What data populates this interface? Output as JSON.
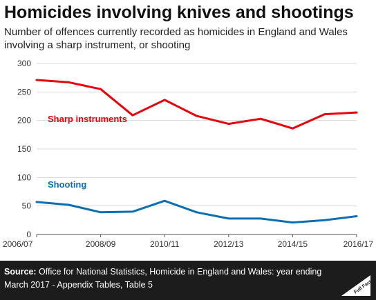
{
  "header": {
    "title": "Homicides involving knives and shootings",
    "subtitle": "Number of offences currently recorded as homicides in England and Wales involving a sharp instrument, or shooting"
  },
  "footer": {
    "source_label": "Source:",
    "source_text": "Office for National Statistics, Homicide in England and Wales: year ending March 2017 - Appendix Tables, Table 5",
    "logo_text": "Full Fact"
  },
  "colors": {
    "sharp": "#e8000b",
    "shooting": "#0a6eb4"
  },
  "chart_data": {
    "type": "line",
    "x": [
      "2006/07",
      "2007/08",
      "2008/09",
      "2009/10",
      "2010/11",
      "2011/12",
      "2012/13",
      "2013/14",
      "2014/15",
      "2015/16",
      "2016/17"
    ],
    "x_tick_labels": [
      "2006/07",
      "2008/09",
      "2010/11",
      "2012/13",
      "2014/15",
      "2016/17"
    ],
    "ylim": [
      0,
      300
    ],
    "y_ticks": [
      0,
      50,
      100,
      150,
      200,
      250,
      300
    ],
    "grid": true,
    "series": [
      {
        "name": "Sharp instruments",
        "values": [
          271,
          267,
          255,
          209,
          236,
          208,
          194,
          203,
          186,
          211,
          214
        ]
      },
      {
        "name": "Shooting",
        "values": [
          57,
          52,
          39,
          40,
          59,
          39,
          28,
          28,
          21,
          25,
          32
        ]
      }
    ]
  }
}
